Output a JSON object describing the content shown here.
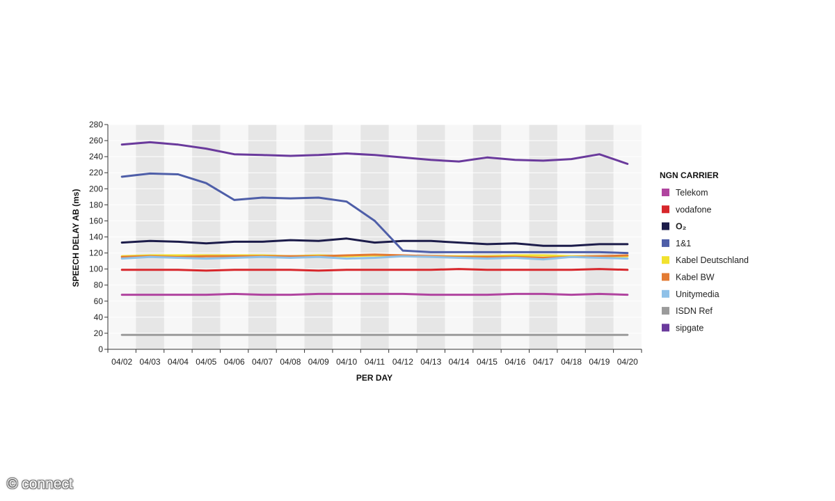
{
  "chart_data": {
    "type": "line",
    "title": "",
    "xlabel": "PER DAY",
    "ylabel": "SPEECH DELAY AB (ms)",
    "ylim": [
      0,
      280
    ],
    "yticks": [
      0,
      20,
      40,
      60,
      80,
      100,
      120,
      140,
      160,
      180,
      200,
      220,
      240,
      260,
      280
    ],
    "categories": [
      "04/02",
      "04/03",
      "04/04",
      "04/05",
      "04/06",
      "04/07",
      "04/08",
      "04/09",
      "04/10",
      "04/11",
      "04/12",
      "04/13",
      "04/14",
      "04/15",
      "04/16",
      "04/17",
      "04/18",
      "04/19",
      "04/20"
    ],
    "legend_title": "NGN CARRIER",
    "legend_position": "right",
    "series": [
      {
        "name": "Telekom",
        "color": "#b0449f",
        "values": [
          68,
          68,
          68,
          68,
          69,
          68,
          68,
          69,
          69,
          69,
          69,
          68,
          68,
          68,
          69,
          69,
          68,
          69,
          68
        ]
      },
      {
        "name": "vodafone",
        "color": "#d7262b",
        "values": [
          99,
          99,
          99,
          98,
          99,
          99,
          99,
          98,
          99,
          99,
          99,
          99,
          100,
          99,
          99,
          99,
          99,
          100,
          99
        ]
      },
      {
        "name": "O₂",
        "color": "#1c1c4a",
        "bold": true,
        "values": [
          133,
          135,
          134,
          132,
          134,
          134,
          136,
          135,
          138,
          133,
          135,
          135,
          133,
          131,
          132,
          129,
          129,
          131,
          131
        ]
      },
      {
        "name": "1&1",
        "color": "#4e5ea8",
        "values": [
          215,
          219,
          218,
          207,
          186,
          189,
          188,
          189,
          184,
          160,
          123,
          121,
          121,
          121,
          121,
          121,
          121,
          121,
          120
        ]
      },
      {
        "name": "Kabel Deutschland",
        "color": "#f2e22e",
        "values": [
          116,
          117,
          117,
          117,
          117,
          117,
          116,
          117,
          116,
          117,
          116,
          116,
          116,
          116,
          117,
          117,
          116,
          116,
          116
        ]
      },
      {
        "name": "Kabel BW",
        "color": "#e37b33",
        "values": [
          115,
          116,
          115,
          116,
          116,
          116,
          116,
          116,
          117,
          118,
          117,
          116,
          115,
          115,
          115,
          114,
          115,
          116,
          117
        ]
      },
      {
        "name": "Unitymedia",
        "color": "#8fc1e8",
        "values": [
          113,
          115,
          114,
          113,
          114,
          115,
          114,
          115,
          113,
          114,
          116,
          115,
          114,
          113,
          114,
          112,
          115,
          114,
          113
        ]
      },
      {
        "name": "ISDN Ref",
        "color": "#9b9b9b",
        "values": [
          18,
          18,
          18,
          18,
          18,
          18,
          18,
          18,
          18,
          18,
          18,
          18,
          18,
          18,
          18,
          18,
          18,
          18,
          18
        ]
      },
      {
        "name": "sipgate",
        "color": "#6a3a9c",
        "values": [
          255,
          258,
          255,
          250,
          243,
          242,
          241,
          242,
          244,
          242,
          239,
          236,
          234,
          239,
          236,
          235,
          237,
          243,
          231
        ]
      }
    ]
  },
  "watermark": "© connect"
}
